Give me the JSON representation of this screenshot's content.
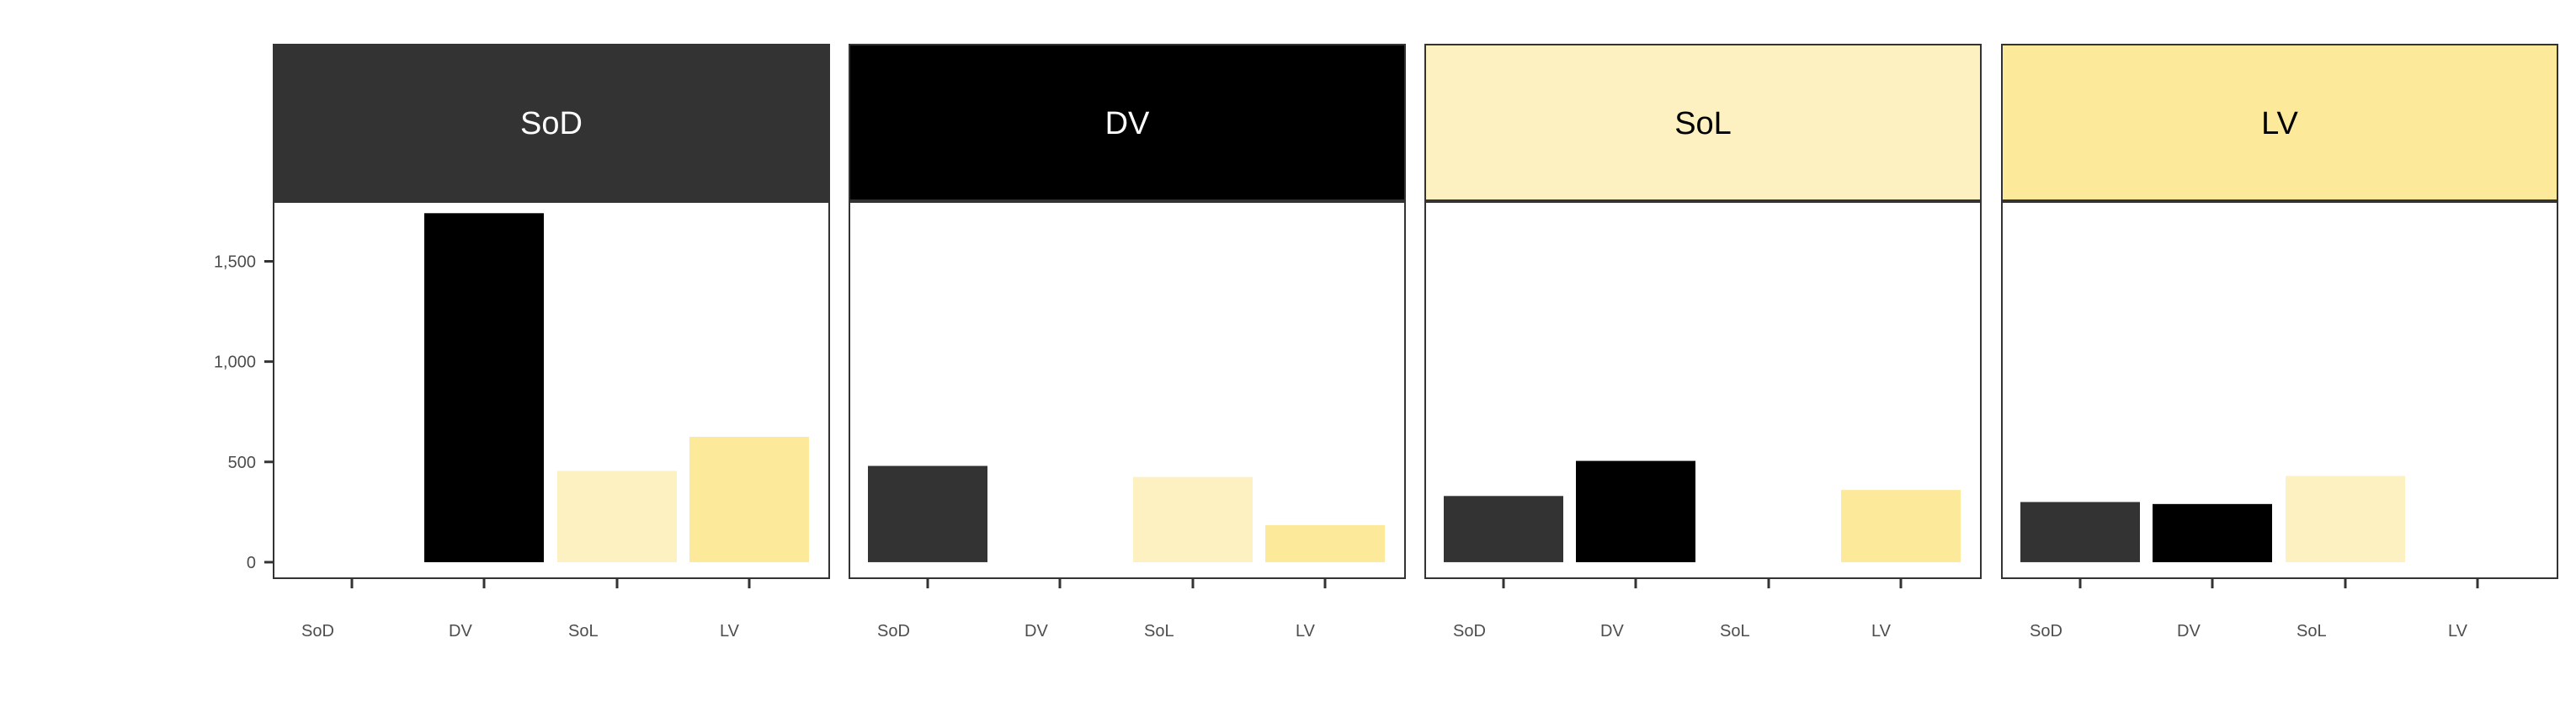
{
  "colors": {
    "SoD": "#333333",
    "DV": "#000000",
    "SoL": "#fdf0c1",
    "LV": "#fde99a",
    "axis_text": "#4d4d4d",
    "panel_border": "#333333"
  },
  "chart_data": {
    "type": "bar",
    "facet_layout": "1 row x 4 columns",
    "grid": false,
    "legend": "none",
    "xlabel": "",
    "ylabel": "",
    "categories": [
      "SoD",
      "DV",
      "SoL",
      "LV"
    ],
    "ylim": [
      -80,
      1800
    ],
    "y_ticks": [
      0,
      500,
      1000,
      1500
    ],
    "y_tick_labels": [
      "0",
      "500",
      "1,000",
      "1,500"
    ],
    "panels": [
      {
        "title": "SoD",
        "strip_color": "#333333",
        "strip_text_color": "#ffffff",
        "tick_labels": [
          "SoD",
          "DV",
          "SoL",
          "LV"
        ],
        "values": [
          0,
          1740,
          455,
          625
        ]
      },
      {
        "title": "DV",
        "strip_color": "#000000",
        "strip_text_color": "#ffffff",
        "tick_labels": [
          "SoD",
          "DV",
          "SoL",
          "LV"
        ],
        "values": [
          480,
          0,
          425,
          185
        ]
      },
      {
        "title": "SoL",
        "strip_color": "#fdf0c1",
        "strip_text_color": "#000000",
        "tick_labels": [
          "SoD",
          "DV",
          "SoL",
          "LV"
        ],
        "values": [
          330,
          505,
          0,
          360
        ]
      },
      {
        "title": "LV",
        "strip_color": "#fde99a",
        "strip_text_color": "#000000",
        "tick_labels": [
          "SoD",
          "DV",
          "SoL",
          "LV"
        ],
        "values": [
          300,
          290,
          430,
          0
        ]
      }
    ]
  }
}
